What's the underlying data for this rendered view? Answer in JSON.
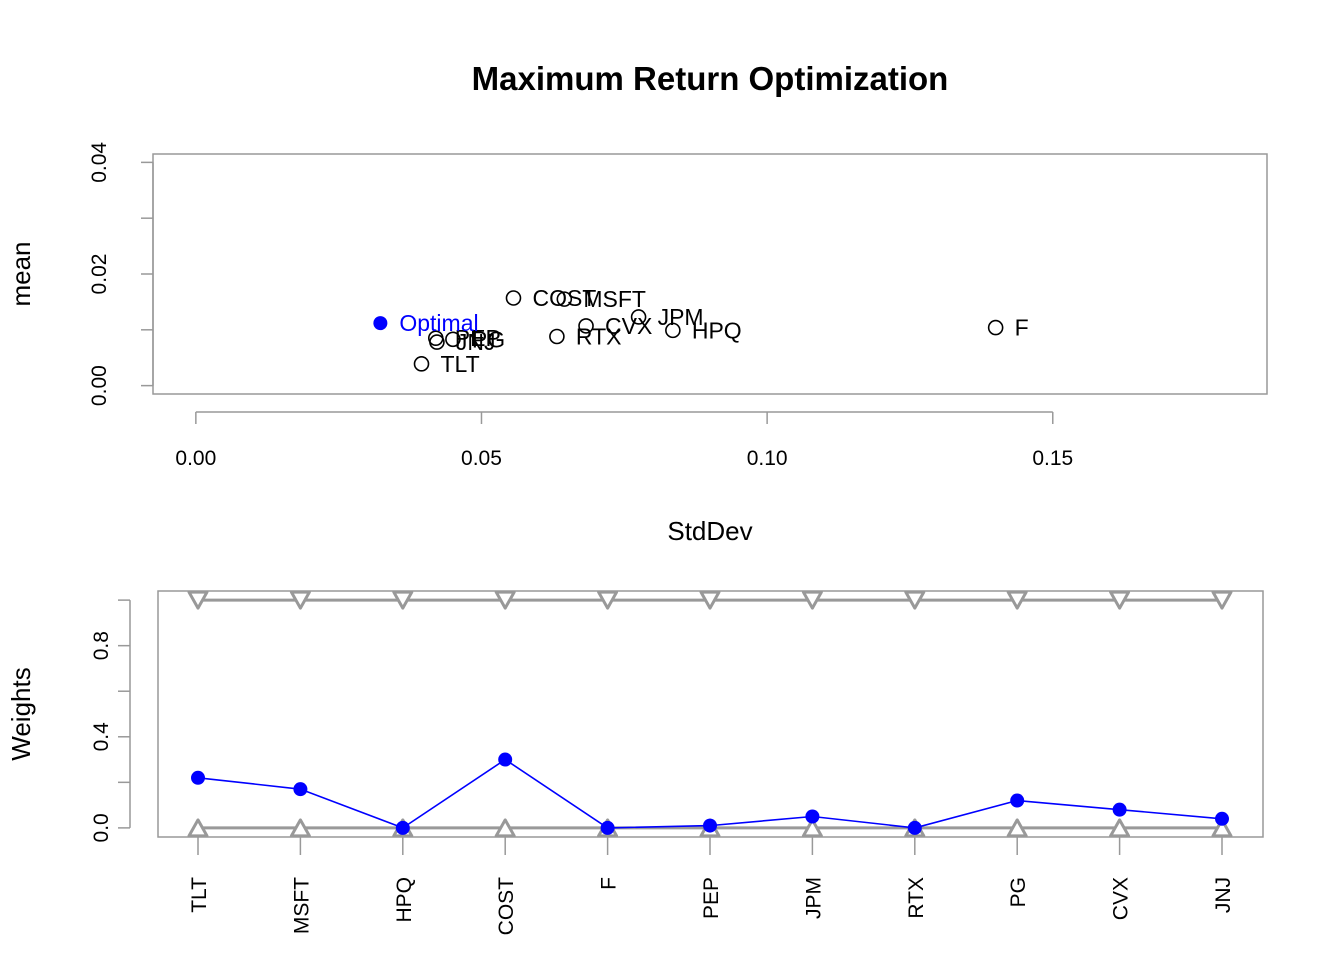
{
  "title": "Maximum Return Optimization",
  "colors": {
    "optimal": "#0000ff",
    "box": "#999999",
    "constraint": "#999999",
    "text": "#000000"
  },
  "chart_data": [
    {
      "type": "scatter",
      "xlabel": "StdDev",
      "ylabel": "mean",
      "xlim": [
        -0.0075,
        0.1875
      ],
      "ylim": [
        -0.0015,
        0.0415
      ],
      "xticks": [
        0.0,
        0.05,
        0.1,
        0.15
      ],
      "xtick_labels": [
        "0.00",
        "0.05",
        "0.10",
        "0.15"
      ],
      "yticks": [
        0.0,
        0.01,
        0.02,
        0.03,
        0.04
      ],
      "ytick_labels": [
        "0.00",
        "",
        "0.02",
        "",
        "0.04"
      ],
      "assets": [
        {
          "name": "TLT",
          "x": 0.0395,
          "y": 0.0039
        },
        {
          "name": "MSFT",
          "x": 0.0645,
          "y": 0.0155
        },
        {
          "name": "HPQ",
          "x": 0.0835,
          "y": 0.0099
        },
        {
          "name": "COST",
          "x": 0.0556,
          "y": 0.0157
        },
        {
          "name": "F",
          "x": 0.14,
          "y": 0.0104
        },
        {
          "name": "PEP",
          "x": 0.042,
          "y": 0.0085
        },
        {
          "name": "JPM",
          "x": 0.0775,
          "y": 0.0123
        },
        {
          "name": "RTX",
          "x": 0.0632,
          "y": 0.0088
        },
        {
          "name": "PG",
          "x": 0.045,
          "y": 0.0083
        },
        {
          "name": "CVX",
          "x": 0.0683,
          "y": 0.0107
        },
        {
          "name": "JNJ",
          "x": 0.0422,
          "y": 0.0078
        }
      ],
      "optimal": {
        "label": "Optimal",
        "x": 0.0323,
        "y": 0.0112
      }
    },
    {
      "type": "line",
      "ylabel": "Weights",
      "ylim": [
        -0.04,
        1.04
      ],
      "yticks": [
        0.0,
        0.2,
        0.4,
        0.6,
        0.8,
        1.0
      ],
      "ytick_labels": [
        "0.0",
        "",
        "0.4",
        "",
        "0.8",
        ""
      ],
      "categories": [
        "TLT",
        "MSFT",
        "HPQ",
        "COST",
        "F",
        "PEP",
        "JPM",
        "RTX",
        "PG",
        "CVX",
        "JNJ"
      ],
      "series": [
        {
          "values": [
            0.22,
            0.17,
            0.0,
            0.3,
            0.0,
            0.01,
            0.05,
            0.0,
            0.12,
            0.08,
            0.04
          ]
        }
      ],
      "lower_bound": [
        0,
        0,
        0,
        0,
        0,
        0,
        0,
        0,
        0,
        0,
        0
      ],
      "upper_bound": [
        1,
        1,
        1,
        1,
        1,
        1,
        1,
        1,
        1,
        1,
        1
      ]
    }
  ]
}
